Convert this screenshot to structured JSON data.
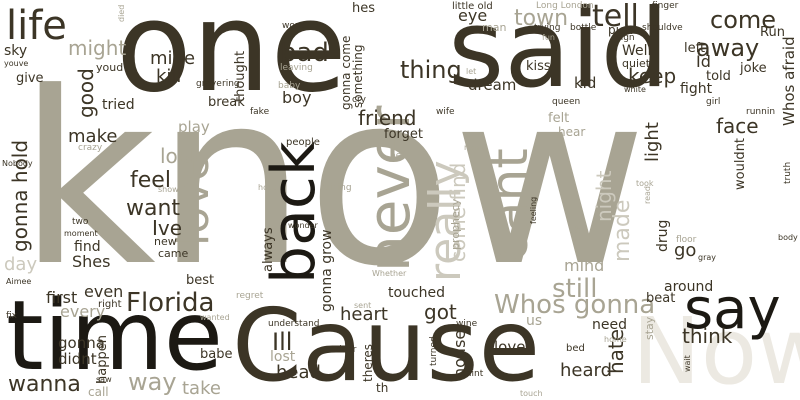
{
  "colors": {
    "background": "#ffffff",
    "dark": "#3c3526",
    "black": "#1c1913",
    "taupe": "#a8a493",
    "light": "#ccc9bd",
    "pale": "#ece9e2"
  },
  "words": {
    "know": "know",
    "one": "one",
    "said": "said",
    "cause": "Cause",
    "time": "time",
    "now": "Now",
    "back": "back",
    "never": "never",
    "cant": "cant",
    "life": "life",
    "love": "love",
    "say": "say",
    "tell": "tell",
    "town": "town",
    "come": "come",
    "away": "away",
    "whos_afraid": "Whos afraid",
    "florida": "Florida",
    "whos_gonna": "Whos gonna",
    "still": "still",
    "ill": "Ill",
    "gonna_hold": "gonna hold",
    "gonna_grow": "gonna grow",
    "wanna": "wanna",
    "way": "way",
    "feel": "feel",
    "want": "want",
    "ive": "Ive",
    "look": "look",
    "thing": "thing",
    "bad": "bad",
    "mine": "mine",
    "kill": "kill",
    "might": "might",
    "good": "good",
    "make": "make",
    "tried": "tried",
    "friend": "friend",
    "heart": "heart",
    "got": "got",
    "keep": "keep",
    "face": "face",
    "light": "light",
    "think": "think",
    "head": "head",
    "heard": "heard",
    "hate": "hate",
    "house": "house",
    "loved": "loved",
    "touched": "touched",
    "first": "first",
    "even": "even",
    "every": "every",
    "didnt": "didnt",
    "gonna": "gonna",
    "shes": "Shes",
    "find": "find",
    "boy": "boy",
    "eye": "eye",
    "dream": "dream",
    "kiss": "kiss",
    "kid": "kid",
    "id": "Id",
    "well": "Well",
    "left": "left",
    "told": "told",
    "fight": "fight",
    "joke": "joke",
    "run": "Run",
    "go": "go",
    "around": "around",
    "drug": "drug",
    "wouldnt": "wouldnt",
    "need": "need",
    "mind": "mind",
    "us": "us",
    "beat": "beat",
    "play": "play",
    "break": "break",
    "thought": "thought",
    "always": "always",
    "sky": "sky",
    "give": "give",
    "hes": "hes",
    "gonna_come": "gonna come",
    "something": "something",
    "forget": "forget",
    "felt": "felt",
    "hear": "hear",
    "best": "best",
    "babe": "babe",
    "happen": "happen",
    "call": "call",
    "take": "take",
    "lost": "lost",
    "theres": "theres",
    "th": "th",
    "bed": "bed",
    "stay": "stay",
    "right": "right",
    "new": "new",
    "came": "came",
    "little_old": "little old",
    "long_london": "Long London",
    "man": "man",
    "pick": "pick",
    "quiet": "quiet",
    "youd": "youd",
    "wont": "wont",
    "finger": "finger",
    "died": "died",
    "trying": "trying",
    "bottle": "bottle",
    "sign": "sign",
    "shouldve": "shouldve",
    "fun": "fun",
    "let": "let",
    "baby": "baby",
    "leaving": "leaving",
    "grave": "grave",
    "ring": "ring",
    "cry": "cry",
    "queen": "queen",
    "white": "white",
    "girl": "girl",
    "fake": "fake",
    "runnin": "runnin",
    "wife": "wife",
    "people": "people",
    "crazy": "crazy",
    "nobody": "Nobody",
    "hell": "hell",
    "name": "name",
    "show": "show",
    "hope": "hope",
    "ruining": "ruining",
    "took": "took",
    "read": "read",
    "truth": "truth",
    "two": "two",
    "moment": "moment",
    "wonder": "wonder",
    "prophecy": "prophecy",
    "feeling": "feeling",
    "breath": "breath",
    "floor": "floor",
    "gray": "gray",
    "body": "body",
    "day": "day",
    "aimee": "Aimee",
    "regret": "regret",
    "wanted": "wanted",
    "understand": "understand",
    "whether": "Whether",
    "sent": "sent",
    "wine": "wine",
    "door": "door",
    "turned": "turned",
    "aint": "aint",
    "touch": "touch",
    "home": "home",
    "wait": "wait",
    "fix": "fix",
    "saw": "saw",
    "youve": "youve",
    "made": "made",
    "night": "night",
    "really": "really",
    "come_find": "come find"
  }
}
